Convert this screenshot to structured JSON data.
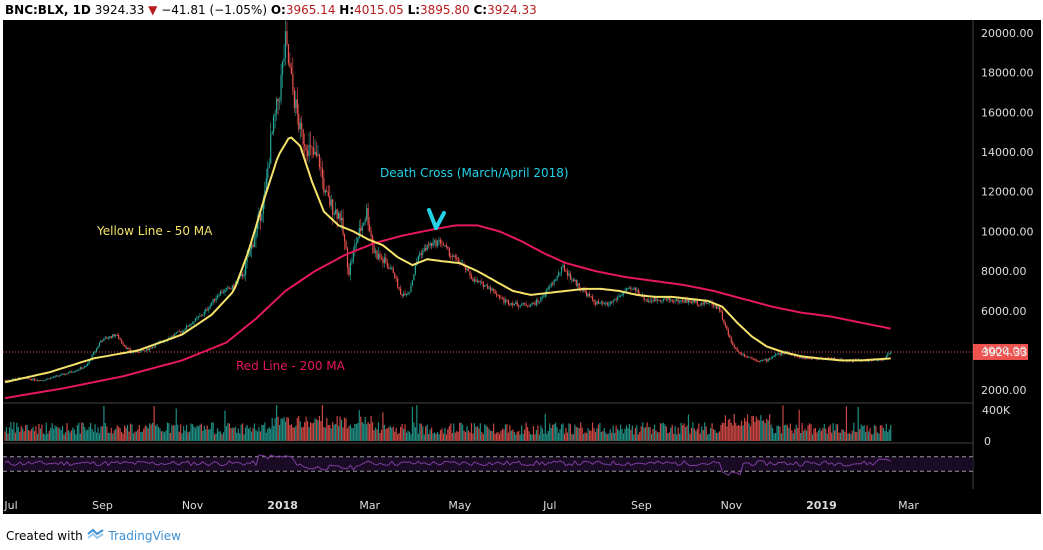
{
  "header": {
    "symbol": "BNC:BLX, 1D",
    "last": "3924.33",
    "arrow": "▼",
    "change": "−41.81 (−1.05%)",
    "o_label": "O:",
    "o_value": "3965.14",
    "h_label": "H:",
    "h_value": "4015.05",
    "l_label": "L:",
    "l_value": "3895.80",
    "c_label": "C:",
    "c_value": "3924.33"
  },
  "footer": {
    "prefix": "Created with",
    "brand": "TradingView"
  },
  "colors": {
    "background": "#000000",
    "up": "#26a69a",
    "down": "#ef5350",
    "ma50": "#f5e26b",
    "ma200": "#e5195a",
    "rsi": "#7d3c9e",
    "annotation": "#22d3e6",
    "price_tag": "#ef5350"
  },
  "chart_data": {
    "type": "candlestick",
    "title": "BNC:BLX, 1D",
    "ylim": [
      1000,
      20500
    ],
    "y_ticks": [
      "20000.00",
      "18000.00",
      "16000.00",
      "14000.00",
      "12000.00",
      "10000.00",
      "8000.00",
      "6000.00",
      "4000.00",
      "2000.00"
    ],
    "y_tick_values": [
      20000,
      18000,
      16000,
      14000,
      12000,
      10000,
      8000,
      6000,
      4000,
      2000
    ],
    "x_labels": [
      "Jul",
      "Sep",
      "Nov",
      "2018",
      "Mar",
      "May",
      "Jul",
      "Sep",
      "Nov",
      "2019",
      "Mar"
    ],
    "x_label_bold": [
      false,
      false,
      false,
      true,
      false,
      false,
      false,
      false,
      false,
      true,
      false
    ],
    "x_label_days": [
      0,
      62,
      123,
      184,
      243,
      304,
      365,
      427,
      488,
      549,
      608
    ],
    "last_day": 600,
    "x_range_days": [
      0,
      630
    ],
    "current_price": 3924.33,
    "current_price_label": "3924.33",
    "price_keypoints": [
      [
        0,
        2500
      ],
      [
        10,
        2600
      ],
      [
        25,
        2500
      ],
      [
        40,
        2800
      ],
      [
        55,
        3200
      ],
      [
        65,
        4500
      ],
      [
        75,
        4800
      ],
      [
        85,
        3900
      ],
      [
        95,
        4000
      ],
      [
        105,
        4400
      ],
      [
        120,
        5000
      ],
      [
        135,
        5900
      ],
      [
        145,
        6900
      ],
      [
        155,
        7200
      ],
      [
        162,
        8000
      ],
      [
        170,
        10000
      ],
      [
        176,
        11800
      ],
      [
        180,
        14500
      ],
      [
        186,
        17000
      ],
      [
        190,
        19500
      ],
      [
        194,
        17500
      ],
      [
        200,
        15000
      ],
      [
        207,
        14000
      ],
      [
        213,
        13500
      ],
      [
        217,
        11800
      ],
      [
        222,
        11200
      ],
      [
        227,
        10800
      ],
      [
        233,
        8000
      ],
      [
        238,
        9500
      ],
      [
        245,
        11000
      ],
      [
        250,
        9000
      ],
      [
        256,
        8500
      ],
      [
        263,
        8000
      ],
      [
        268,
        6800
      ],
      [
        274,
        7000
      ],
      [
        280,
        8800
      ],
      [
        287,
        9300
      ],
      [
        295,
        9500
      ],
      [
        302,
        8800
      ],
      [
        310,
        8300
      ],
      [
        318,
        7500
      ],
      [
        328,
        7200
      ],
      [
        338,
        6500
      ],
      [
        348,
        6300
      ],
      [
        356,
        6300
      ],
      [
        362,
        6500
      ],
      [
        372,
        7500
      ],
      [
        378,
        8200
      ],
      [
        384,
        7600
      ],
      [
        392,
        7000
      ],
      [
        400,
        6400
      ],
      [
        408,
        6300
      ],
      [
        414,
        6600
      ],
      [
        420,
        7000
      ],
      [
        427,
        7100
      ],
      [
        435,
        6500
      ],
      [
        445,
        6600
      ],
      [
        455,
        6500
      ],
      [
        462,
        6500
      ],
      [
        470,
        6400
      ],
      [
        478,
        6400
      ],
      [
        484,
        6100
      ],
      [
        487,
        5400
      ],
      [
        492,
        4400
      ],
      [
        497,
        3900
      ],
      [
        503,
        3700
      ],
      [
        510,
        3500
      ],
      [
        516,
        3500
      ],
      [
        522,
        3800
      ],
      [
        530,
        3900
      ],
      [
        540,
        3600
      ],
      [
        548,
        3600
      ],
      [
        558,
        3600
      ],
      [
        568,
        3500
      ],
      [
        578,
        3500
      ],
      [
        588,
        3500
      ],
      [
        594,
        3500
      ],
      [
        600,
        3924
      ]
    ],
    "ma50_keypoints": [
      [
        0,
        2400
      ],
      [
        30,
        2900
      ],
      [
        60,
        3600
      ],
      [
        90,
        4000
      ],
      [
        120,
        4800
      ],
      [
        140,
        5800
      ],
      [
        155,
        7000
      ],
      [
        165,
        9000
      ],
      [
        175,
        11500
      ],
      [
        185,
        13800
      ],
      [
        193,
        14800
      ],
      [
        200,
        14300
      ],
      [
        208,
        12500
      ],
      [
        216,
        11000
      ],
      [
        226,
        10300
      ],
      [
        236,
        10000
      ],
      [
        246,
        9600
      ],
      [
        256,
        9300
      ],
      [
        266,
        8700
      ],
      [
        276,
        8300
      ],
      [
        286,
        8600
      ],
      [
        296,
        8500
      ],
      [
        308,
        8400
      ],
      [
        320,
        8000
      ],
      [
        332,
        7500
      ],
      [
        344,
        7000
      ],
      [
        356,
        6800
      ],
      [
        368,
        6900
      ],
      [
        380,
        7000
      ],
      [
        392,
        7100
      ],
      [
        404,
        7100
      ],
      [
        416,
        7000
      ],
      [
        428,
        6800
      ],
      [
        440,
        6700
      ],
      [
        452,
        6700
      ],
      [
        464,
        6600
      ],
      [
        476,
        6500
      ],
      [
        486,
        6200
      ],
      [
        496,
        5400
      ],
      [
        506,
        4700
      ],
      [
        516,
        4200
      ],
      [
        528,
        3900
      ],
      [
        540,
        3700
      ],
      [
        552,
        3600
      ],
      [
        566,
        3500
      ],
      [
        580,
        3500
      ],
      [
        600,
        3600
      ]
    ],
    "ma200_keypoints": [
      [
        0,
        1600
      ],
      [
        40,
        2100
      ],
      [
        80,
        2700
      ],
      [
        120,
        3500
      ],
      [
        150,
        4400
      ],
      [
        170,
        5600
      ],
      [
        190,
        7000
      ],
      [
        210,
        8000
      ],
      [
        230,
        8800
      ],
      [
        250,
        9400
      ],
      [
        270,
        9800
      ],
      [
        290,
        10100
      ],
      [
        305,
        10300
      ],
      [
        320,
        10300
      ],
      [
        335,
        10000
      ],
      [
        350,
        9500
      ],
      [
        365,
        8900
      ],
      [
        380,
        8400
      ],
      [
        400,
        8000
      ],
      [
        420,
        7700
      ],
      [
        440,
        7500
      ],
      [
        460,
        7300
      ],
      [
        480,
        7000
      ],
      [
        500,
        6600
      ],
      [
        520,
        6200
      ],
      [
        540,
        5900
      ],
      [
        560,
        5700
      ],
      [
        580,
        5400
      ],
      [
        600,
        5100
      ]
    ],
    "rsi_levels": [
      70,
      30
    ],
    "rsi_range": [
      0,
      100
    ],
    "volume_axis": [
      "400K",
      "0"
    ],
    "series": [
      {
        "name": "Yellow Line - 50 MA",
        "type": "line"
      },
      {
        "name": "Red Line - 200 MA",
        "type": "line"
      }
    ],
    "annotations": {
      "death_cross": "Death Cross (March/April 2018)",
      "yellow_line": "Yellow Line - 50 MA",
      "red_line": "Red Line - 200 MA"
    }
  }
}
